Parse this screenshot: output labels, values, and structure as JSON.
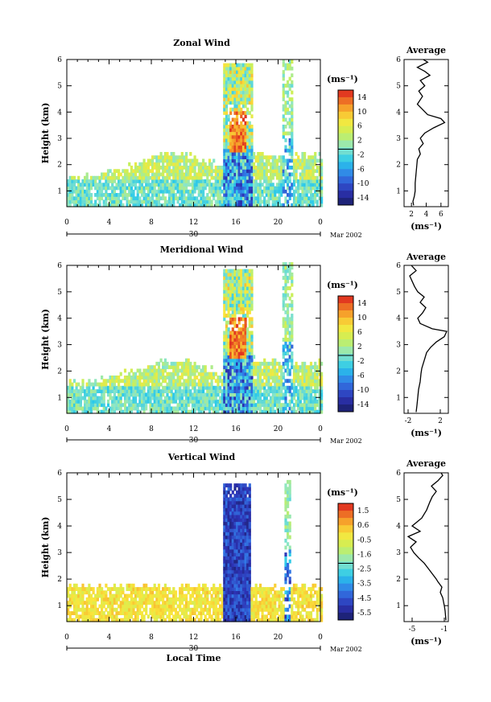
{
  "chart_data": [
    {
      "type": "heatmap",
      "title": "Zonal Wind",
      "ylabel": "Height (km)",
      "x_ticks": [
        "0",
        "4",
        "8",
        "12",
        "16",
        "20",
        "0"
      ],
      "xlim": [
        0,
        24
      ],
      "y_ticks": [
        "1",
        "2",
        "3",
        "4",
        "5",
        "6"
      ],
      "ylim": [
        0.4,
        6
      ],
      "date_tick": "30",
      "date_label": "Mar 2002",
      "colorbar": {
        "unit": "(ms⁻¹)",
        "range": [
          -16,
          16
        ],
        "ticks": [
          "14",
          "10",
          "6",
          "2",
          "-2",
          "-6",
          "-10",
          "-14"
        ]
      },
      "profile": {
        "title": "Average",
        "xlabel": "(ms⁻¹)",
        "x_ticks": [
          "2",
          "4",
          "6"
        ],
        "xlim": [
          1,
          7
        ],
        "y_ticks": [
          "1",
          "2",
          "3",
          "4",
          "5",
          "6"
        ],
        "x": [
          2.3,
          2.2,
          2.4,
          2.5,
          2.5,
          2.6,
          2.7,
          2.8,
          3.2,
          3.0,
          3.6,
          3.2,
          3.8,
          5.0,
          6.5,
          6.0,
          4.2,
          3.5,
          2.8,
          3.5,
          3.0,
          3.8,
          3.2,
          4.5,
          3.8,
          2.8,
          3.5,
          4.2,
          3.6
        ],
        "y": [
          0.45,
          0.6,
          0.8,
          1.0,
          1.3,
          1.6,
          1.9,
          2.2,
          2.4,
          2.6,
          2.8,
          3.0,
          3.2,
          3.4,
          3.6,
          3.75,
          3.9,
          4.1,
          4.3,
          4.6,
          4.8,
          5.0,
          5.2,
          5.4,
          5.55,
          5.7,
          5.8,
          5.9,
          6.0
        ]
      }
    },
    {
      "type": "heatmap",
      "title": "Meridional Wind",
      "ylabel": "Height (km)",
      "x_ticks": [
        "0",
        "4",
        "8",
        "12",
        "16",
        "20",
        "0"
      ],
      "xlim": [
        0,
        24
      ],
      "y_ticks": [
        "1",
        "2",
        "3",
        "4",
        "5",
        "6"
      ],
      "ylim": [
        0.4,
        6
      ],
      "date_tick": "30",
      "date_label": "Mar 2002",
      "colorbar": {
        "unit": "(ms⁻¹)",
        "range": [
          -16,
          16
        ],
        "ticks": [
          "14",
          "10",
          "6",
          "2",
          "-2",
          "-6",
          "-10",
          "-14"
        ]
      },
      "profile": {
        "title": "Average",
        "xlabel": "(ms⁻¹)",
        "x_ticks": [
          "-2",
          "2"
        ],
        "xlim": [
          -2.5,
          3
        ],
        "y_ticks": [
          "1",
          "2",
          "3",
          "4",
          "5",
          "6"
        ],
        "x": [
          -1.0,
          -0.9,
          -0.8,
          -0.7,
          -0.5,
          -0.4,
          -0.3,
          0.0,
          0.3,
          0.8,
          1.5,
          2.5,
          2.8,
          1.0,
          -0.5,
          -0.8,
          -0.2,
          0.2,
          -0.5,
          0.0,
          -0.8,
          -1.2,
          -1.5,
          -1.8,
          -1.0,
          -1.6
        ],
        "y": [
          0.45,
          0.7,
          1.0,
          1.3,
          1.6,
          1.9,
          2.1,
          2.4,
          2.7,
          2.9,
          3.1,
          3.3,
          3.5,
          3.6,
          3.8,
          4.0,
          4.2,
          4.4,
          4.6,
          4.8,
          5.0,
          5.2,
          5.4,
          5.6,
          5.8,
          6.0
        ]
      }
    },
    {
      "type": "heatmap",
      "title": "Vertical Wind",
      "ylabel": "Height (km)",
      "xlabel": "Local Time",
      "x_ticks": [
        "0",
        "4",
        "8",
        "12",
        "16",
        "20",
        "0"
      ],
      "xlim": [
        0,
        24
      ],
      "y_ticks": [
        "1",
        "2",
        "3",
        "4",
        "5",
        "6"
      ],
      "ylim": [
        0.4,
        6
      ],
      "date_tick": "30",
      "date_label": "Mar 2002",
      "colorbar": {
        "unit": "(ms⁻¹)",
        "range": [
          -6,
          2
        ],
        "ticks": [
          "1.5",
          "0.6",
          "-0.5",
          "-1.6",
          "-2.5",
          "-3.5",
          "-4.5",
          "-5.5"
        ]
      },
      "profile": {
        "title": "Average",
        "xlabel": "(ms⁻¹)",
        "x_ticks": [
          "-5",
          "-1"
        ],
        "xlim": [
          -6,
          -0.5
        ],
        "y_ticks": [
          "1",
          "2",
          "3",
          "4",
          "5",
          "6"
        ],
        "x": [
          -0.8,
          -0.9,
          -1.0,
          -1.2,
          -1.5,
          -1.3,
          -1.8,
          -2.0,
          -2.5,
          -3.0,
          -3.5,
          -4.2,
          -4.8,
          -5.2,
          -4.5,
          -5.5,
          -4.0,
          -5.0,
          -3.8,
          -3.2,
          -2.8,
          -2.5,
          -2.0,
          -2.6,
          -1.8,
          -1.5,
          -1.2,
          -1.4
        ],
        "y": [
          0.45,
          0.8,
          1.0,
          1.3,
          1.5,
          1.7,
          1.9,
          2.0,
          2.2,
          2.4,
          2.6,
          2.8,
          3.0,
          3.2,
          3.4,
          3.6,
          3.8,
          4.0,
          4.3,
          4.6,
          4.9,
          5.1,
          5.3,
          5.5,
          5.7,
          5.8,
          5.9,
          6.0
        ]
      }
    }
  ]
}
